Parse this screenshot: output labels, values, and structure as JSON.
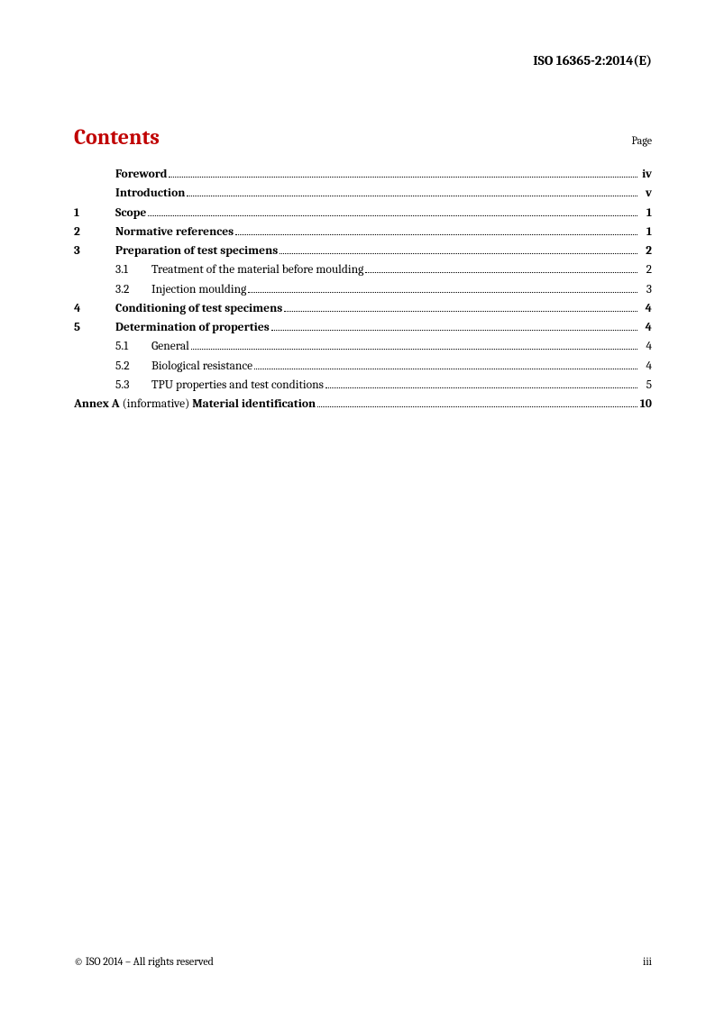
{
  "document_id": "ISO 16365-2:2014(E)",
  "contents_title": "Contents",
  "page_label": "Page",
  "toc": [
    {
      "type": "top",
      "num": "",
      "label": "Foreword",
      "bold": true,
      "page": "iv",
      "page_bold": true
    },
    {
      "type": "top",
      "num": "",
      "label": "Introduction",
      "bold": true,
      "page": "v",
      "page_bold": true
    },
    {
      "type": "top",
      "num": "1",
      "label": "Scope",
      "bold": true,
      "page": "1",
      "page_bold": true
    },
    {
      "type": "top",
      "num": "2",
      "label": "Normative references",
      "bold": true,
      "page": "1",
      "page_bold": true
    },
    {
      "type": "top",
      "num": "3",
      "label": "Preparation of test specimens",
      "bold": true,
      "page": "2",
      "page_bold": true
    },
    {
      "type": "sub",
      "num": "3.1",
      "label": "Treatment of the material before moulding",
      "bold": false,
      "page": "2",
      "page_bold": false
    },
    {
      "type": "sub",
      "num": "3.2",
      "label": "Injection moulding",
      "bold": false,
      "page": "3",
      "page_bold": false
    },
    {
      "type": "top",
      "num": "4",
      "label": "Conditioning of test specimens",
      "bold": true,
      "page": "4",
      "page_bold": true
    },
    {
      "type": "top",
      "num": "5",
      "label": "Determination of properties",
      "bold": true,
      "page": "4",
      "page_bold": true
    },
    {
      "type": "sub",
      "num": "5.1",
      "label": "General",
      "bold": false,
      "page": "4",
      "page_bold": false
    },
    {
      "type": "sub",
      "num": "5.2",
      "label": "Biological resistance",
      "bold": false,
      "page": "4",
      "page_bold": false
    },
    {
      "type": "sub",
      "num": "5.3",
      "label": "TPU properties and test conditions",
      "bold": false,
      "page": "5",
      "page_bold": false
    },
    {
      "type": "annex",
      "num": "",
      "label_pre": "Annex A",
      "label_note": " (informative) ",
      "label_post": "Material identification",
      "page": "10",
      "page_bold": true
    }
  ],
  "footer_left": "© ISO 2014 – All rights reserved",
  "footer_right": "iii"
}
